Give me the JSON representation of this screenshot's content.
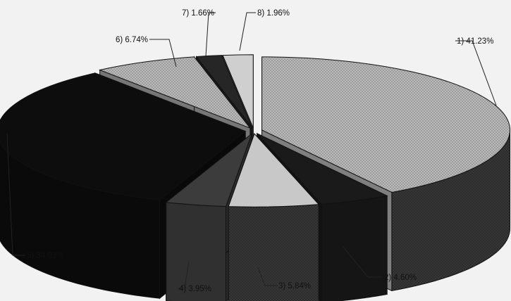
{
  "chart_data": {
    "type": "pie",
    "title": "",
    "categories": [
      "1",
      "2",
      "3",
      "4",
      "5",
      "6",
      "7",
      "8"
    ],
    "values": [
      41.23,
      4.6,
      5.84,
      3.95,
      34.03,
      6.74,
      1.66,
      1.96
    ],
    "labels": [
      "1) 41.23%",
      "2) 4.60%",
      "3) 5.84%",
      "4) 3.95%",
      "5) 34.03%",
      "6) 6.74%",
      "7) 1.66%",
      "8) 1.96%"
    ],
    "style": "3d-exploded",
    "legend": "none",
    "slice_colors": [
      "#b5b5b5",
      "#1a1a1a",
      "#c8c8c8",
      "#3c3c3c",
      "#0d0d0d",
      "#a8a8a8",
      "#262626",
      "#cfcfcf"
    ]
  }
}
